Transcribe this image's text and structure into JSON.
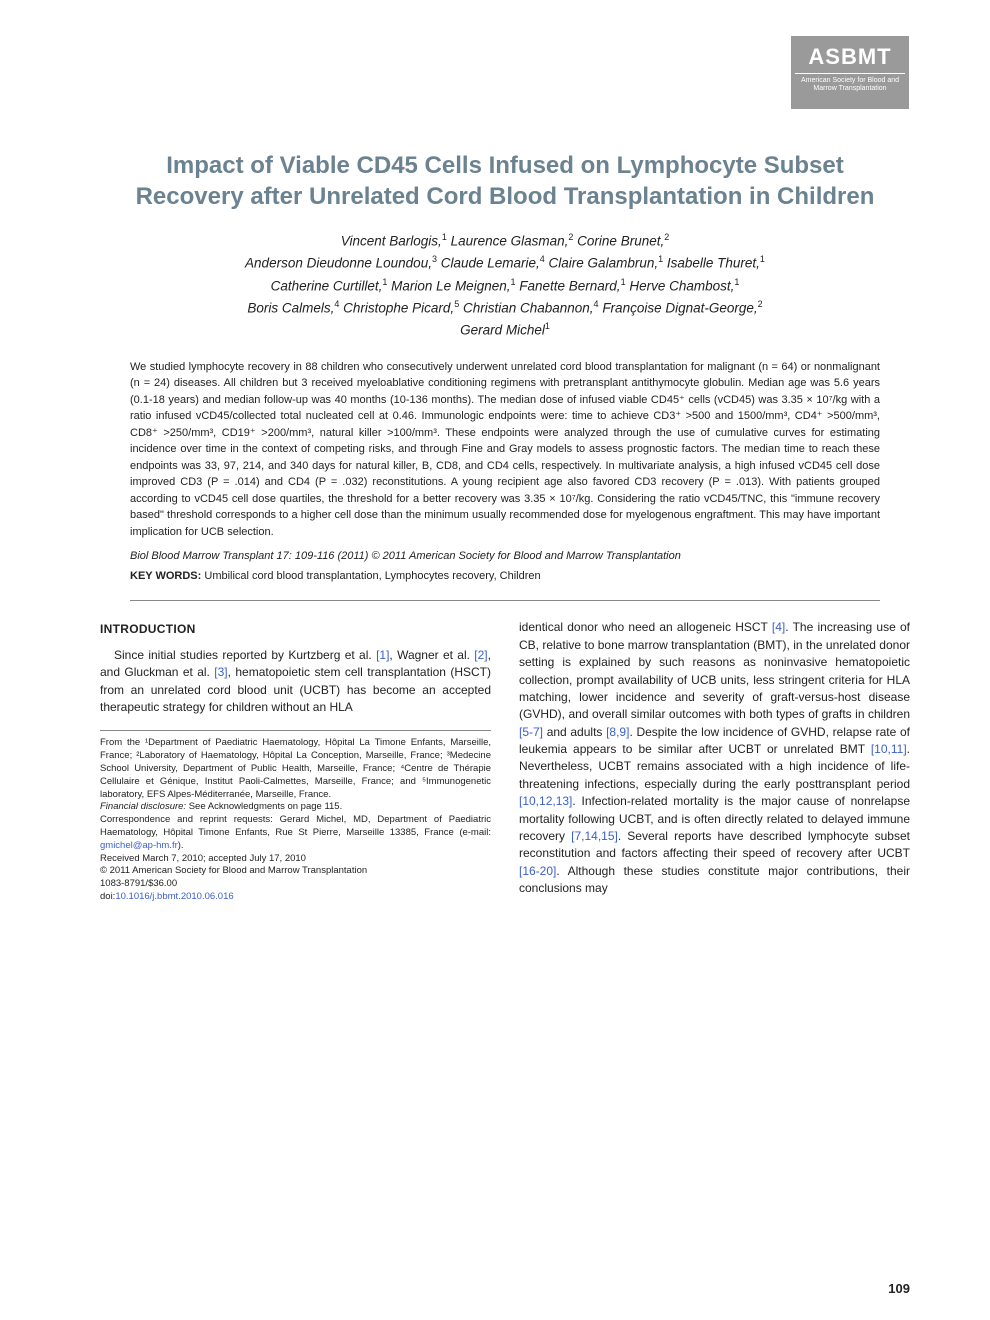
{
  "logo": {
    "main": "ASBMT",
    "sub": "American Society for Blood and Marrow Transplantation"
  },
  "title": "Impact of Viable CD45 Cells Infused on Lymphocyte Subset Recovery after Unrelated Cord Blood Transplantation in Children",
  "authors_html": "Vincent Barlogis,<sup>1</sup> Laurence Glasman,<sup>2</sup> Corine Brunet,<sup>2</sup><br>Anderson Dieudonne Loundou,<sup>3</sup> Claude Lemarie,<sup>4</sup> Claire Galambrun,<sup>1</sup> Isabelle Thuret,<sup>1</sup><br>Catherine Curtillet,<sup>1</sup> Marion Le Meignen,<sup>1</sup> Fanette Bernard,<sup>1</sup> Herve Chambost,<sup>1</sup><br>Boris Calmels,<sup>4</sup> Christophe Picard,<sup>5</sup> Christian Chabannon,<sup>4</sup> Françoise Dignat-George,<sup>2</sup><br>Gerard Michel<sup>1</sup>",
  "abstract": "We studied lymphocyte recovery in 88 children who consecutively underwent unrelated cord blood transplantation for malignant (n = 64) or nonmalignant (n = 24) diseases. All children but 3 received myeloablative conditioning regimens with pretransplant antithymocyte globulin. Median age was 5.6 years (0.1-18 years) and median follow-up was 40 months (10-136 months). The median dose of infused viable CD45⁺ cells (vCD45) was 3.35 × 10⁷/kg with a ratio infused vCD45/collected total nucleated cell at 0.46. Immunologic endpoints were: time to achieve CD3⁺ >500 and 1500/mm³, CD4⁺ >500/mm³, CD8⁺ >250/mm³, CD19⁺ >200/mm³, natural killer >100/mm³. These endpoints were analyzed through the use of cumulative curves for estimating incidence over time in the context of competing risks, and through Fine and Gray models to assess prognostic factors. The median time to reach these endpoints was 33, 97, 214, and 340 days for natural killer, B, CD8, and CD4 cells, respectively. In multivariate analysis, a high infused vCD45 cell dose improved CD3 (P = .014) and CD4 (P = .032) reconstitutions. A young recipient age also favored CD3 recovery (P = .013). With patients grouped according to vCD45 cell dose quartiles, the threshold for a better recovery was 3.35 × 10⁷/kg. Considering the ratio vCD45/TNC, this \"immune recovery based\" threshold corresponds to a higher cell dose than the minimum usually recommended dose for myelogenous engraftment. This may have important implication for UCB selection.",
  "citation": "Biol Blood Marrow Transplant 17: 109-116 (2011) © 2011 American Society for Blood and Marrow Transplantation",
  "keywords_label": "KEY WORDS:",
  "keywords": "Umbilical cord blood transplantation, Lymphocytes recovery, Children",
  "section": {
    "introduction": "INTRODUCTION"
  },
  "body": {
    "left_para": "Since initial studies reported by Kurtzberg et al. [1], Wagner et al. [2], and Gluckman et al. [3], hematopoietic stem cell transplantation (HSCT) from an unrelated cord blood unit (UCBT) has become an accepted therapeutic strategy for children without an HLA",
    "right_para": "identical donor who need an allogeneic HSCT [4]. The increasing use of CB, relative to bone marrow transplantation (BMT), in the unrelated donor setting is explained by such reasons as noninvasive hematopoietic collection, prompt availability of UCB units, less stringent criteria for HLA matching, lower incidence and severity of graft-versus-host disease (GVHD), and overall similar outcomes with both types of grafts in children [5-7] and adults [8,9]. Despite the low incidence of GVHD, relapse rate of leukemia appears to be similar after UCBT or unrelated BMT [10,11]. Nevertheless, UCBT remains associated with a high incidence of life-threatening infections, especially during the early posttransplant period [10,12,13]. Infection-related mortality is the major cause of nonrelapse mortality following UCBT, and is often directly related to delayed immune recovery [7,14,15]. Several reports have described lymphocyte subset reconstitution and factors affecting their speed of recovery after UCBT [16-20]. Although these studies constitute major contributions, their conclusions may"
  },
  "footnotes": {
    "affil": "From the ¹Department of Paediatric Haematology, Hôpital La Timone Enfants, Marseille, France; ²Laboratory of Haematology, Hôpital La Conception, Marseille, France; ³Medecine School University, Department of Public Health, Marseille, France; ⁴Centre de Thérapie Cellulaire et Génique, Institut Paoli-Calmettes, Marseille, France; and ⁵Immunogenetic laboratory, EFS Alpes-Méditerranée, Marseille, France.",
    "disclosure_label": "Financial disclosure:",
    "disclosure": " See Acknowledgments on page 115.",
    "corr": "Correspondence and reprint requests: Gerard Michel, MD, Department of Paediatric Haematology, Hôpital Timone Enfants, Rue St Pierre, Marseille 13385, France (e-mail: ",
    "email": "gmichel@ap-hm.fr",
    "corr_after": ").",
    "received": "Received March 7, 2010; accepted July 17, 2010",
    "copyright": "© 2011 American Society for Blood and Marrow Transplantation",
    "issn": "1083-8791/$36.00",
    "doi_label": "doi:",
    "doi": "10.1016/j.bbmt.2010.06.016"
  },
  "pagenum": "109",
  "colors": {
    "title": "#6b8290",
    "logo_bg": "#9a9a9a",
    "link": "#3a5fcd",
    "text": "#222222",
    "rule": "#888888"
  },
  "typography": {
    "title_fontsize": 24,
    "author_fontsize": 13.5,
    "abstract_fontsize": 11,
    "body_fontsize": 12,
    "footnote_fontsize": 9.5
  }
}
